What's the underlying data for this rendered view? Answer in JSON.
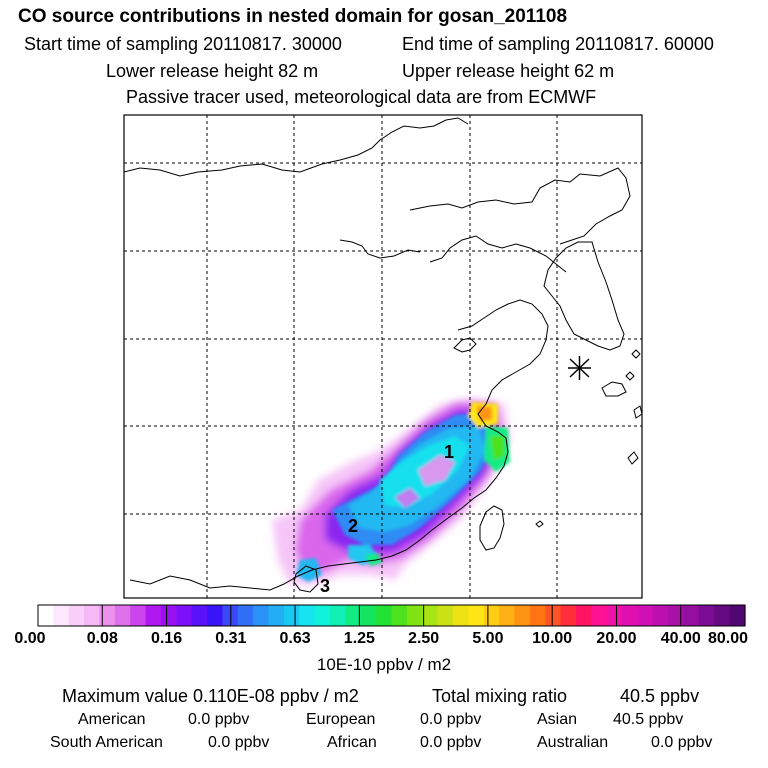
{
  "header": {
    "title": "CO  source contributions in nested domain for gosan_201108",
    "start_label": "Start time of sampling 20110817. 30000",
    "end_label": "End time of sampling 20110817. 60000",
    "lower_label": "Lower release height   82 m",
    "upper_label": "Upper release height   62 m",
    "note": "Passive tracer used, meteorological data are from ECMWF"
  },
  "map": {
    "receptor_marker": "asterisk-icon",
    "labels": [
      "1",
      "2",
      "3"
    ]
  },
  "colorbar": {
    "tick_labels": [
      "0.00",
      "0.08",
      "0.16",
      "0.31",
      "0.63",
      "1.25",
      "2.50",
      "5.00",
      "10.00",
      "20.00",
      "40.00",
      "80.00"
    ],
    "colors": [
      "#ffffff",
      "#fde8fd",
      "#fad0fa",
      "#f6b8f6",
      "#ec92ee",
      "#e070ea",
      "#cc44ee",
      "#b018f0",
      "#9a10f0",
      "#7c10f8",
      "#5a12f8",
      "#3a14f8",
      "#3a48f8",
      "#3070f6",
      "#2a92f6",
      "#22aef4",
      "#1ac8f4",
      "#16e4f0",
      "#10f2da",
      "#10f0b4",
      "#12ea84",
      "#14e45e",
      "#22e034",
      "#4ee21e",
      "#80e414",
      "#a6e414",
      "#cce214",
      "#eee214",
      "#ffe614",
      "#ffcc14",
      "#ffb014",
      "#ff9414",
      "#ff7414",
      "#ff5426",
      "#ff2e3a",
      "#ff1464",
      "#ff1294",
      "#ee12a8",
      "#e010b0",
      "#d010b4",
      "#bc10b0",
      "#a810a8",
      "#940ea0",
      "#7c0c94",
      "#660a84",
      "#500870"
    ],
    "unit": "10E-10 ppbv / m2"
  },
  "summary": {
    "max_label": "Maximum value  0.110E-08 ppbv / m2",
    "total_label": "Total mixing ratio",
    "total_value": "40.5 ppbv",
    "american_label": "American",
    "american_value": "0.0 ppbv",
    "european_label": "European",
    "european_value": "0.0 ppbv",
    "asian_label": "Asian",
    "asian_value": "40.5 ppbv",
    "south_american_label": "South American",
    "south_american_value": "0.0 ppbv",
    "african_label": "African",
    "african_value": "0.0 ppbv",
    "australian_label": "Australian",
    "australian_value": "0.0 ppbv"
  }
}
